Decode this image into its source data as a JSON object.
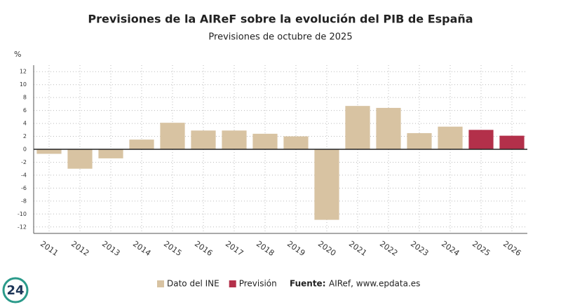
{
  "chart_data": {
    "type": "bar",
    "title": "Previsiones de la AIReF sobre la evolución del PIB de España",
    "subtitle": "Previsiones de octubre de 2025",
    "y_label": "%",
    "categories": [
      "2011",
      "2012",
      "2013",
      "2014",
      "2015",
      "2016",
      "2017",
      "2018",
      "2019",
      "2020",
      "2021",
      "2022",
      "2023",
      "2024",
      "2025",
      "2026"
    ],
    "series": [
      {
        "name": "Dato del INE",
        "color": "#d8c3a2",
        "values": [
          -0.7,
          -3.0,
          -1.4,
          1.5,
          4.1,
          2.9,
          2.9,
          2.4,
          2.0,
          -10.9,
          6.7,
          6.4,
          2.5,
          3.5,
          null,
          null
        ]
      },
      {
        "name": "Previsión",
        "color": "#b3304a",
        "values": [
          null,
          null,
          null,
          null,
          null,
          null,
          null,
          null,
          null,
          null,
          null,
          null,
          null,
          null,
          3.0,
          2.1
        ]
      }
    ],
    "ylim": [
      -13,
      13
    ],
    "yticks": [
      12,
      10,
      8,
      6,
      4,
      2,
      0,
      -2,
      -4,
      -6,
      -8,
      -10,
      -12
    ],
    "grid": true,
    "legend": "bottom",
    "source_label": "Fuente:",
    "source": "AIRef, www.epdata.es",
    "watermark": "24"
  }
}
